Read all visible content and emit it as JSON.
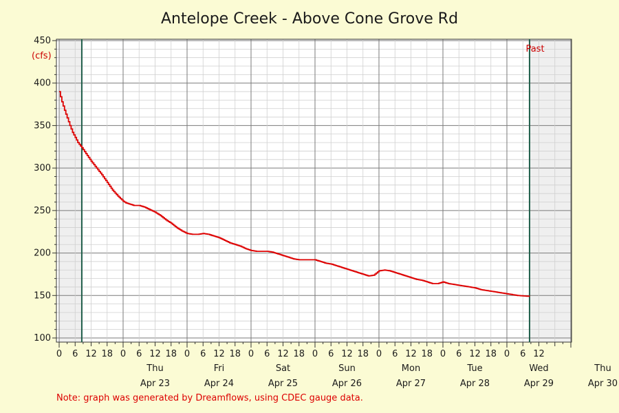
{
  "chart_data": {
    "type": "line",
    "title": "Antelope Creek - Above Cone Grove Rd",
    "ylabel": "(cfs)",
    "ylim": [
      100,
      450
    ],
    "yticks": [
      100,
      150,
      200,
      250,
      300,
      350,
      400,
      450
    ],
    "x_unit": "hours since 12 AM Apr 22",
    "xlim": [
      0,
      192
    ],
    "hour_tick_labels": [
      "0",
      "6",
      "12",
      "18",
      "0",
      "6",
      "12",
      "18",
      "0",
      "6",
      "12",
      "18",
      "0",
      "6",
      "12",
      "18",
      "0",
      "6",
      "12",
      "18",
      "0",
      "6",
      "12",
      "18",
      "0",
      "6",
      "12",
      "18",
      "0",
      "6",
      "12"
    ],
    "days": [
      {
        "weekday": "Thu",
        "date": "Apr 23"
      },
      {
        "weekday": "Fri",
        "date": "Apr 24"
      },
      {
        "weekday": "Sat",
        "date": "Apr 25"
      },
      {
        "weekday": "Sun",
        "date": "Apr 26"
      },
      {
        "weekday": "Mon",
        "date": "Apr 27"
      },
      {
        "weekday": "Tue",
        "date": "Apr 28"
      },
      {
        "weekday": "Wed",
        "date": "Apr 29"
      },
      {
        "weekday": "Thu",
        "date": "Apr 30"
      }
    ],
    "shaded_regions": [
      [
        0,
        8.5
      ],
      [
        176.5,
        192
      ]
    ],
    "marker_lines": [
      8.5,
      176.5
    ],
    "past_label": "Past",
    "grid": true,
    "series": [
      {
        "color": "#dd0000",
        "points": [
          [
            0,
            390
          ],
          [
            1,
            378
          ],
          [
            2,
            368
          ],
          [
            3,
            359
          ],
          [
            4,
            350
          ],
          [
            5,
            342
          ],
          [
            6,
            336
          ],
          [
            7,
            330
          ],
          [
            8.5,
            324
          ],
          [
            10,
            317
          ],
          [
            12,
            308
          ],
          [
            14,
            300
          ],
          [
            16,
            292
          ],
          [
            18,
            283
          ],
          [
            20,
            274
          ],
          [
            22,
            267
          ],
          [
            24,
            261
          ],
          [
            25,
            259
          ],
          [
            26,
            258
          ],
          [
            27,
            257
          ],
          [
            28,
            256
          ],
          [
            30,
            256
          ],
          [
            32,
            254
          ],
          [
            34,
            251
          ],
          [
            36,
            248
          ],
          [
            38,
            244
          ],
          [
            40,
            239
          ],
          [
            42,
            235
          ],
          [
            44,
            230
          ],
          [
            46,
            226
          ],
          [
            48,
            223
          ],
          [
            50,
            222
          ],
          [
            52,
            222
          ],
          [
            54,
            223
          ],
          [
            56,
            222
          ],
          [
            58,
            220
          ],
          [
            60,
            218
          ],
          [
            62,
            215
          ],
          [
            64,
            212
          ],
          [
            66,
            210
          ],
          [
            68,
            208
          ],
          [
            70,
            205
          ],
          [
            72,
            203
          ],
          [
            74,
            202
          ],
          [
            76,
            202
          ],
          [
            78,
            202
          ],
          [
            80,
            201
          ],
          [
            82,
            199
          ],
          [
            84,
            197
          ],
          [
            86,
            195
          ],
          [
            88,
            193
          ],
          [
            90,
            192
          ],
          [
            92,
            192
          ],
          [
            94,
            192
          ],
          [
            96,
            192
          ],
          [
            98,
            190
          ],
          [
            100,
            188
          ],
          [
            102,
            187
          ],
          [
            104,
            185
          ],
          [
            106,
            183
          ],
          [
            108,
            181
          ],
          [
            110,
            179
          ],
          [
            112,
            177
          ],
          [
            114,
            175
          ],
          [
            115,
            174
          ],
          [
            116,
            173
          ],
          [
            118,
            174
          ],
          [
            120,
            179
          ],
          [
            122,
            180
          ],
          [
            124,
            179
          ],
          [
            126,
            177
          ],
          [
            128,
            175
          ],
          [
            130,
            173
          ],
          [
            132,
            171
          ],
          [
            134,
            169
          ],
          [
            136,
            168
          ],
          [
            138,
            166
          ],
          [
            140,
            164
          ],
          [
            142,
            164
          ],
          [
            144,
            166
          ],
          [
            146,
            164
          ],
          [
            148,
            163
          ],
          [
            150,
            162
          ],
          [
            152,
            161
          ],
          [
            154,
            160
          ],
          [
            156,
            159
          ],
          [
            158,
            157
          ],
          [
            160,
            156
          ],
          [
            162,
            155
          ],
          [
            164,
            154
          ],
          [
            166,
            153
          ],
          [
            168,
            152
          ],
          [
            170,
            151
          ],
          [
            172,
            150
          ],
          [
            174,
            149.5
          ],
          [
            176.5,
            149
          ]
        ]
      }
    ]
  },
  "footer": {
    "note": "Note: graph was generated by Dreamflows, using CDEC gauge data."
  }
}
